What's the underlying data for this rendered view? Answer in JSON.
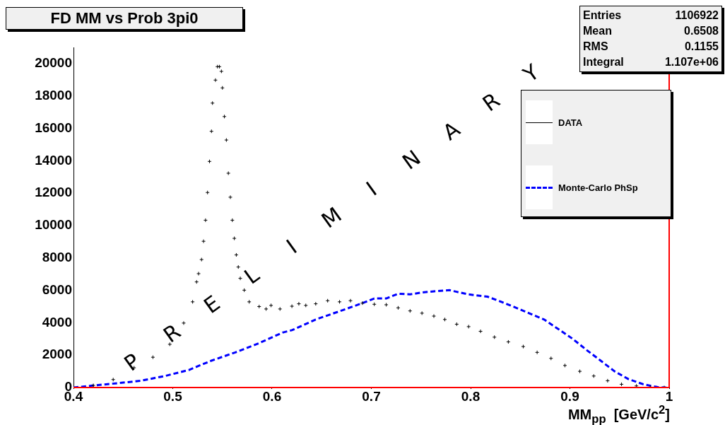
{
  "chart_data": {
    "type": "scatter",
    "title": "FD MM vs Prob 3pi0",
    "xlabel": "MM$_{pp}$  [GeV/c$^{2}$]",
    "xlim": [
      0.4,
      1
    ],
    "xticks": [
      0.4,
      0.5,
      0.6,
      0.7,
      0.8,
      0.9,
      1
    ],
    "ylim": [
      0,
      21000
    ],
    "yticks": [
      0,
      2000,
      4000,
      6000,
      8000,
      10000,
      12000,
      14000,
      16000,
      18000,
      20000
    ],
    "grid": false,
    "legend": "top right",
    "marker": "cross",
    "series": [
      {
        "name": "DATA",
        "color": "#000000",
        "x": [
          0.42,
          0.44,
          0.461,
          0.48,
          0.497,
          0.511,
          0.52,
          0.524,
          0.526,
          0.529,
          0.531,
          0.533,
          0.535,
          0.537,
          0.539,
          0.54,
          0.543,
          0.545,
          0.547,
          0.549,
          0.55,
          0.552,
          0.554,
          0.556,
          0.558,
          0.56,
          0.562,
          0.564,
          0.566,
          0.568,
          0.572,
          0.577,
          0.587,
          0.594,
          0.599,
          0.608,
          0.62,
          0.627,
          0.634,
          0.644,
          0.656,
          0.668,
          0.679,
          0.691,
          0.703,
          0.715,
          0.727,
          0.739,
          0.751,
          0.763,
          0.774,
          0.786,
          0.798,
          0.81,
          0.824,
          0.838,
          0.853,
          0.867,
          0.881,
          0.895,
          0.91,
          0.924,
          0.938,
          0.952,
          0.967,
          0.981,
          0.995
        ],
        "values": [
          130,
          490,
          1220,
          1870,
          2670,
          3980,
          5290,
          6520,
          7030,
          7900,
          9030,
          10330,
          12040,
          13960,
          15820,
          17560,
          18980,
          19810,
          19810,
          19520,
          18500,
          16730,
          15280,
          13230,
          11750,
          10330,
          9210,
          8190,
          7440,
          6740,
          6010,
          5290,
          5000,
          4850,
          5070,
          4850,
          5020,
          5170,
          5070,
          5170,
          5360,
          5290,
          5360,
          5210,
          5140,
          5110,
          4920,
          4730,
          4590,
          4410,
          4200,
          3910,
          3760,
          3470,
          3110,
          2820,
          2530,
          2170,
          1800,
          1360,
          1000,
          710,
          420,
          200,
          100,
          30,
          0
        ]
      },
      {
        "name": "Monte-Carlo PhSp",
        "type": "line",
        "line_style": "dashed",
        "marker": "none",
        "color": "#0000ff",
        "x": [
          0.4,
          0.421,
          0.445,
          0.468,
          0.492,
          0.516,
          0.539,
          0.563,
          0.587,
          0.611,
          0.62,
          0.644,
          0.668,
          0.691,
          0.703,
          0.715,
          0.727,
          0.739,
          0.751,
          0.763,
          0.779,
          0.786,
          0.798,
          0.817,
          0.831,
          0.846,
          0.86,
          0.874,
          0.888,
          0.902,
          0.917,
          0.931,
          0.945,
          0.959,
          0.974,
          0.988,
          0.997
        ],
        "values": [
          0,
          130,
          270,
          420,
          710,
          1080,
          1660,
          2170,
          2740,
          3400,
          3540,
          4200,
          4710,
          5210,
          5500,
          5500,
          5790,
          5750,
          5870,
          5940,
          6010,
          5910,
          5750,
          5610,
          5290,
          4920,
          4560,
          4200,
          3620,
          3040,
          2310,
          1660,
          1000,
          520,
          200,
          30,
          0
        ]
      }
    ],
    "ref_lines": [
      {
        "axis": "x",
        "value": 1,
        "color": "#ff0000"
      },
      {
        "axis": "y",
        "value": 0,
        "color": "#ff0000"
      }
    ],
    "annotations": [
      "P R E L I M I N A R Y",
      "Entries 1106922",
      "Mean 0.6508",
      "RMS 0.1155",
      "Integral 1.107e+06"
    ]
  }
}
